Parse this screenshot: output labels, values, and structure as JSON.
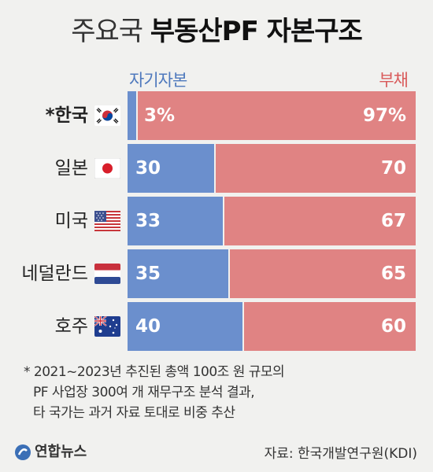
{
  "title": {
    "light": "주요국",
    "bold": "부동산PF 자본구조"
  },
  "legend": {
    "equity": "자기자본",
    "debt": "부채"
  },
  "chart_data": {
    "type": "bar",
    "stacked": true,
    "orientation": "horizontal",
    "categories": [
      "*한국",
      "일본",
      "미국",
      "네덜란드",
      "호주"
    ],
    "series": [
      {
        "name": "자기자본",
        "values": [
          3,
          30,
          33,
          35,
          40
        ],
        "labels": [
          "3%",
          "30",
          "33",
          "35",
          "40"
        ],
        "color": "#6b8fcd"
      },
      {
        "name": "부채",
        "values": [
          97,
          70,
          67,
          65,
          60
        ],
        "labels": [
          "97%",
          "70",
          "67",
          "65",
          "60"
        ],
        "color": "#e08383"
      }
    ],
    "xlim": [
      0,
      100
    ],
    "grid": false
  },
  "flags": [
    "korea-flag-icon",
    "japan-flag-icon",
    "usa-flag-icon",
    "netherlands-flag-icon",
    "australia-flag-icon"
  ],
  "footnote": {
    "line1": "* 2021~2023년 추진된 총액 100조 원 규모의",
    "line2": "PF 사업장 300여 개 재무구조 분석 결과,",
    "line3": "타 국가는 과거 자료 토대로 비중 추산"
  },
  "logo": "연합뉴스",
  "source": "자료: 한국개발연구원(KDI)"
}
